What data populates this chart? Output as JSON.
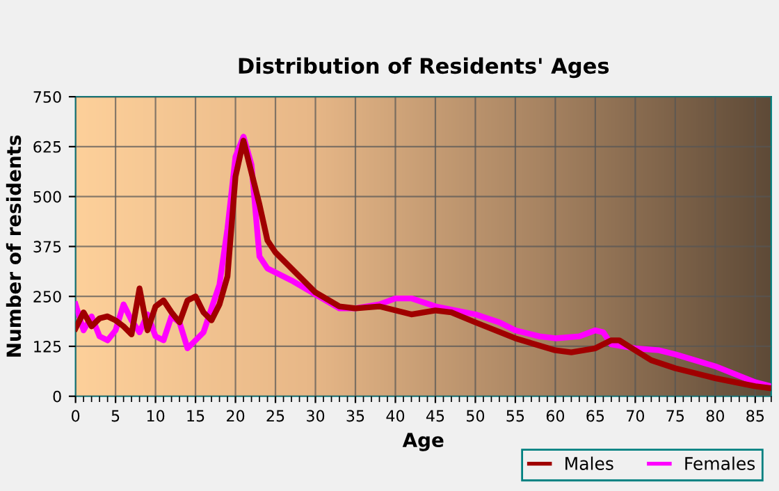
{
  "chart_data": {
    "type": "line",
    "title": "Distribution of Residents' Ages",
    "xlabel": "Age",
    "ylabel": "Number of residents",
    "xlim": [
      0,
      87
    ],
    "xticks": [
      0,
      5,
      10,
      15,
      20,
      25,
      30,
      35,
      40,
      45,
      50,
      55,
      60,
      65,
      70,
      75,
      80,
      85
    ],
    "ylim": [
      0,
      750
    ],
    "yticks": [
      0,
      125,
      250,
      375,
      500,
      625,
      750
    ],
    "grid": true,
    "legend": "bottom right",
    "marker": "none",
    "line_style": "solid",
    "series": [
      {
        "name": "Males",
        "color": "#a00000",
        "x": [
          0,
          1,
          2,
          3,
          4,
          5,
          6,
          7,
          8,
          9,
          10,
          11,
          12,
          13,
          14,
          15,
          16,
          17,
          18,
          19,
          20,
          21,
          22,
          23,
          24,
          25,
          27,
          30,
          33,
          35,
          38,
          40,
          42,
          45,
          47,
          50,
          55,
          60,
          62,
          65,
          67,
          68,
          70,
          72,
          75,
          80,
          85,
          87
        ],
        "values": [
          170,
          210,
          175,
          195,
          200,
          190,
          175,
          155,
          270,
          165,
          225,
          240,
          210,
          185,
          240,
          250,
          210,
          190,
          230,
          300,
          550,
          640,
          560,
          480,
          390,
          360,
          320,
          260,
          225,
          220,
          225,
          215,
          205,
          215,
          210,
          185,
          145,
          115,
          110,
          120,
          140,
          140,
          115,
          90,
          70,
          45,
          25,
          20
        ]
      },
      {
        "name": "Females",
        "color": "#ff00ff",
        "x": [
          0,
          1,
          2,
          3,
          4,
          5,
          6,
          7,
          8,
          9,
          10,
          11,
          12,
          13,
          14,
          15,
          16,
          17,
          18,
          19,
          20,
          21,
          22,
          23,
          24,
          25,
          27,
          30,
          33,
          35,
          38,
          40,
          42,
          45,
          50,
          53,
          55,
          58,
          60,
          63,
          65,
          66,
          67,
          70,
          73,
          75,
          80,
          85,
          87
        ],
        "values": [
          230,
          165,
          200,
          150,
          140,
          165,
          230,
          190,
          160,
          205,
          150,
          140,
          200,
          185,
          120,
          140,
          160,
          220,
          280,
          420,
          600,
          650,
          580,
          350,
          320,
          310,
          290,
          255,
          220,
          220,
          230,
          245,
          245,
          225,
          205,
          185,
          165,
          150,
          145,
          150,
          165,
          160,
          130,
          120,
          115,
          105,
          75,
          35,
          25
        ]
      }
    ]
  }
}
